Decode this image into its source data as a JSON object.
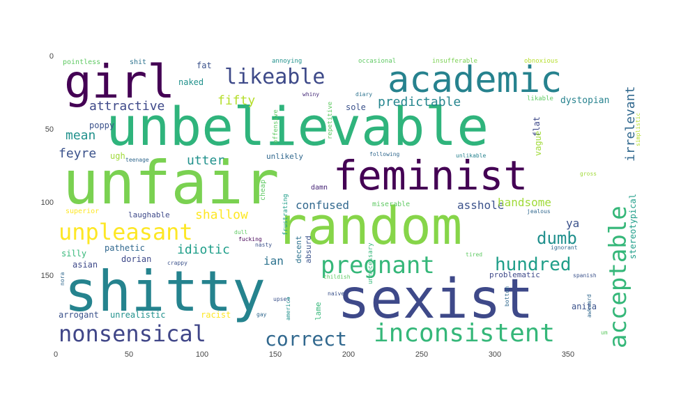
{
  "chart_data": {
    "type": "wordcloud",
    "x_ticks": [
      "0",
      "50",
      "100",
      "150",
      "200",
      "250",
      "300",
      "350"
    ],
    "y_ticks": [
      "0",
      "50",
      "100",
      "150"
    ],
    "xlim": [
      0,
      400
    ],
    "ylim": [
      0,
      200
    ],
    "words": [
      {
        "text": "unbelievable",
        "color": "#2fb47c"
      },
      {
        "text": "unfair",
        "color": "#7ad151"
      },
      {
        "text": "random",
        "color": "#86d549"
      },
      {
        "text": "shitty",
        "color": "#25838e"
      },
      {
        "text": "sexist",
        "color": "#3e4989"
      },
      {
        "text": "feminist",
        "color": "#440154"
      },
      {
        "text": "academic",
        "color": "#26828e"
      },
      {
        "text": "girl",
        "color": "#440154"
      },
      {
        "text": "likeable",
        "color": "#3e4a89"
      },
      {
        "text": "unpleasant",
        "color": "#fde725"
      },
      {
        "text": "nonsensical",
        "color": "#404688"
      },
      {
        "text": "pregnant",
        "color": "#35b779"
      },
      {
        "text": "inconsistent",
        "color": "#35b779"
      },
      {
        "text": "acceptable",
        "color": "#35b779"
      },
      {
        "text": "hundred",
        "color": "#1f9e89"
      },
      {
        "text": "correct",
        "color": "#31688e"
      },
      {
        "text": "dumb",
        "color": "#21908d"
      },
      {
        "text": "irrelevant",
        "color": "#31688e"
      },
      {
        "text": "attractive",
        "color": "#3e4989"
      },
      {
        "text": "predictable",
        "color": "#25858e"
      },
      {
        "text": "fifty",
        "color": "#b5de2b"
      },
      {
        "text": "dystopian",
        "color": "#26828e"
      },
      {
        "text": "mean",
        "color": "#21918c"
      },
      {
        "text": "feyre",
        "color": "#3b528b"
      },
      {
        "text": "utter",
        "color": "#21918c"
      },
      {
        "text": "shallow",
        "color": "#fde725"
      },
      {
        "text": "confused",
        "color": "#31688e"
      },
      {
        "text": "asshole",
        "color": "#3b528b"
      },
      {
        "text": "handsome",
        "color": "#a0da39"
      },
      {
        "text": "idiotic",
        "color": "#1f9e89"
      },
      {
        "text": "ian",
        "color": "#2c728e"
      },
      {
        "text": "ya",
        "color": "#3b528b"
      },
      {
        "text": "stereotypical",
        "color": "#1f9e89"
      },
      {
        "text": "pointless",
        "color": "#5ec962"
      },
      {
        "text": "shit",
        "color": "#2c728e"
      },
      {
        "text": "fat",
        "color": "#3b528b"
      },
      {
        "text": "annoying",
        "color": "#21918c"
      },
      {
        "text": "occasional",
        "color": "#5ec962"
      },
      {
        "text": "insufferable",
        "color": "#7ad151"
      },
      {
        "text": "obnoxious",
        "color": "#b5de2b"
      },
      {
        "text": "naked",
        "color": "#21918c"
      },
      {
        "text": "poppy",
        "color": "#3b528b"
      },
      {
        "text": "offensive",
        "color": "#5ec962"
      },
      {
        "text": "whiny",
        "color": "#472c7a"
      },
      {
        "text": "diary",
        "color": "#2c728e"
      },
      {
        "text": "repetitive",
        "color": "#5ec962"
      },
      {
        "text": "sole",
        "color": "#3b528b"
      },
      {
        "text": "likable",
        "color": "#5ec962"
      },
      {
        "text": "simplistic",
        "color": "#b5de2b"
      },
      {
        "text": "flat",
        "color": "#3e4989"
      },
      {
        "text": "vague",
        "color": "#a0da39"
      },
      {
        "text": "ugh",
        "color": "#a0da39"
      },
      {
        "text": "teenage",
        "color": "#31688e"
      },
      {
        "text": "unlikely",
        "color": "#31688e"
      },
      {
        "text": "following",
        "color": "#31688e"
      },
      {
        "text": "unlikable",
        "color": "#26828e"
      },
      {
        "text": "gross",
        "color": "#a0da39"
      },
      {
        "text": "cheap",
        "color": "#5ec962"
      },
      {
        "text": "damn",
        "color": "#482677"
      },
      {
        "text": "frustrating",
        "color": "#1f9e89"
      },
      {
        "text": "miserable",
        "color": "#5ec962"
      },
      {
        "text": "superior",
        "color": "#fde725"
      },
      {
        "text": "laughable",
        "color": "#3e4989"
      },
      {
        "text": "fucking",
        "color": "#440154"
      },
      {
        "text": "dull",
        "color": "#5ec962"
      },
      {
        "text": "jealous",
        "color": "#31688e"
      },
      {
        "text": "decent",
        "color": "#2c728e"
      },
      {
        "text": "absurd",
        "color": "#3b528b"
      },
      {
        "text": "nasty",
        "color": "#3b528b"
      },
      {
        "text": "silly",
        "color": "#35b779"
      },
      {
        "text": "pathetic",
        "color": "#31688e"
      },
      {
        "text": "ignorant",
        "color": "#31688e"
      },
      {
        "text": "tired",
        "color": "#5ec962"
      },
      {
        "text": "dorian",
        "color": "#3e4989"
      },
      {
        "text": "crappy",
        "color": "#3b528b"
      },
      {
        "text": "asian",
        "color": "#3e4989"
      },
      {
        "text": "childish",
        "color": "#5ec962"
      },
      {
        "text": "unnecessary",
        "color": "#35b779"
      },
      {
        "text": "problematic",
        "color": "#3e4989"
      },
      {
        "text": "spanish",
        "color": "#3b528b"
      },
      {
        "text": "nora",
        "color": "#31688e"
      },
      {
        "text": "naive",
        "color": "#3b528b"
      },
      {
        "text": "upset",
        "color": "#3b528b"
      },
      {
        "text": "america",
        "color": "#21918c"
      },
      {
        "text": "bottom",
        "color": "#31688e"
      },
      {
        "text": "awkward",
        "color": "#31688e"
      },
      {
        "text": "arrogant",
        "color": "#3b528b"
      },
      {
        "text": "unrealistic",
        "color": "#21918c"
      },
      {
        "text": "racist",
        "color": "#fde725"
      },
      {
        "text": "gay",
        "color": "#31688e"
      },
      {
        "text": "lame",
        "color": "#35b779"
      },
      {
        "text": "anita",
        "color": "#3b528b"
      },
      {
        "text": "um",
        "color": "#5ec962"
      }
    ]
  }
}
